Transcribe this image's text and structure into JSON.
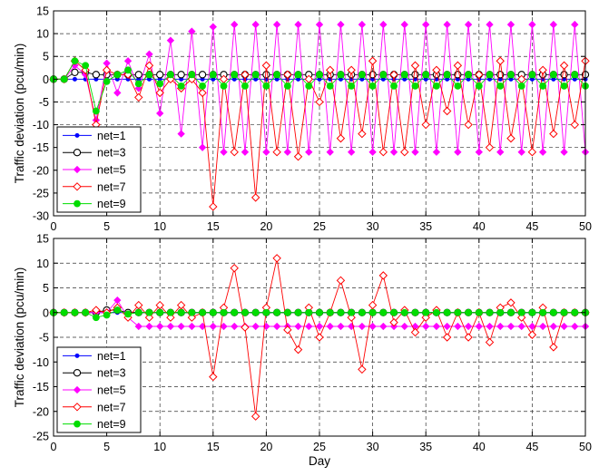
{
  "chart_data": [
    {
      "type": "line",
      "xlabel": "",
      "ylabel": "Traffic deviation (pcu/min)",
      "xlim": [
        0,
        50
      ],
      "ylim": [
        -30,
        15
      ],
      "xticks": [
        0,
        5,
        10,
        15,
        20,
        25,
        30,
        35,
        40,
        45,
        50
      ],
      "yticks": [
        15,
        10,
        5,
        0,
        -5,
        -10,
        -15,
        -20,
        -25,
        -30
      ],
      "grid": true,
      "legend_position": "bottom-left",
      "x": [
        0,
        1,
        2,
        3,
        4,
        5,
        6,
        7,
        8,
        9,
        10,
        11,
        12,
        13,
        14,
        15,
        16,
        17,
        18,
        19,
        20,
        21,
        22,
        23,
        24,
        25,
        26,
        27,
        28,
        29,
        30,
        31,
        32,
        33,
        34,
        35,
        36,
        37,
        38,
        39,
        40,
        41,
        42,
        43,
        44,
        45,
        46,
        47,
        48,
        49,
        50
      ],
      "series": [
        {
          "name": "net=1",
          "color": "#0000ff",
          "marker": "dot",
          "values": [
            0,
            0,
            0,
            0,
            0,
            0,
            0,
            0,
            0,
            0,
            0,
            0,
            0,
            0,
            0,
            0,
            0,
            0,
            0,
            0,
            0,
            0,
            0,
            0,
            0,
            0,
            0,
            0,
            0,
            0,
            0,
            0,
            0,
            0,
            0,
            0,
            0,
            0,
            0,
            0,
            0,
            0,
            0,
            0,
            0,
            0,
            0,
            0,
            0,
            0,
            0
          ]
        },
        {
          "name": "net=3",
          "color": "#000000",
          "marker": "circle",
          "values": [
            0,
            0,
            1.5,
            1.5,
            1,
            1,
            1,
            1,
            1,
            1,
            1,
            1,
            1,
            1,
            1,
            1,
            1,
            1,
            1,
            1,
            1,
            1,
            1,
            1,
            1,
            1,
            1,
            1,
            1,
            1,
            1,
            1,
            1,
            1,
            1,
            1,
            1,
            1,
            1,
            1,
            1,
            1,
            1,
            1,
            1,
            1,
            1,
            1,
            1,
            1,
            1
          ]
        },
        {
          "name": "net=5",
          "color": "#ff00ff",
          "marker": "star",
          "values": [
            0,
            0,
            3,
            1,
            -9,
            3.5,
            -3,
            4,
            -2,
            5.5,
            -7.5,
            8.5,
            -12,
            10.5,
            -15,
            11.5,
            -16,
            12,
            -16,
            12,
            -16,
            12,
            -16,
            12,
            -16,
            12,
            -16,
            12,
            -16,
            12,
            -16,
            12,
            -16,
            12,
            -16,
            12,
            -16,
            12,
            -16,
            12,
            -16,
            12,
            -16,
            12,
            -16,
            12,
            -16,
            12,
            -16,
            12,
            -16
          ]
        },
        {
          "name": "net=7",
          "color": "#ff0000",
          "marker": "diamond",
          "values": [
            0,
            0,
            4,
            2,
            -10,
            2,
            1,
            1,
            -4,
            3,
            -3,
            0,
            -2,
            0,
            -3,
            -28,
            0,
            -16,
            1,
            -26,
            3,
            -16,
            1,
            -17,
            0,
            -5,
            2,
            -13,
            2,
            -12,
            4,
            -16,
            1,
            -16,
            3,
            -10,
            2,
            -7,
            3,
            -10,
            1,
            -15,
            4,
            -13,
            0,
            -16,
            2,
            -12,
            3,
            -10,
            4
          ]
        },
        {
          "name": "net=9",
          "color": "#00dd00",
          "marker": "dot",
          "values": [
            0,
            0,
            4,
            3,
            -7,
            -0.5,
            1,
            2,
            -1,
            1,
            -1,
            1,
            -1.5,
            1,
            -1.5,
            1,
            -1.5,
            1,
            -1.5,
            1,
            -1.5,
            1,
            -1.5,
            1,
            -1.5,
            1,
            -1.5,
            1,
            -1.5,
            1,
            -1.5,
            1,
            -1.5,
            1,
            -1.5,
            1,
            -1.5,
            1,
            -1.5,
            1,
            -1.5,
            1,
            -1.5,
            1,
            -1.5,
            1,
            -1.5,
            1,
            -1.5,
            1,
            -1.5
          ]
        }
      ]
    },
    {
      "type": "line",
      "xlabel": "Day",
      "ylabel": "Traffic deviation (pcu/min)",
      "xlim": [
        0,
        50
      ],
      "ylim": [
        -25,
        15
      ],
      "xticks": [
        0,
        5,
        10,
        15,
        20,
        25,
        30,
        35,
        40,
        45,
        50
      ],
      "yticks": [
        15,
        10,
        5,
        0,
        -5,
        -10,
        -15,
        -20,
        -25
      ],
      "grid": true,
      "legend_position": "bottom-left",
      "x": [
        0,
        1,
        2,
        3,
        4,
        5,
        6,
        7,
        8,
        9,
        10,
        11,
        12,
        13,
        14,
        15,
        16,
        17,
        18,
        19,
        20,
        21,
        22,
        23,
        24,
        25,
        26,
        27,
        28,
        29,
        30,
        31,
        32,
        33,
        34,
        35,
        36,
        37,
        38,
        39,
        40,
        41,
        42,
        43,
        44,
        45,
        46,
        47,
        48,
        49,
        50
      ],
      "series": [
        {
          "name": "net=1",
          "color": "#0000ff",
          "marker": "dot",
          "values": [
            0,
            0,
            0,
            0,
            0,
            0,
            0,
            0,
            0,
            0,
            0,
            0,
            0,
            0,
            0,
            0,
            0,
            0,
            0,
            0,
            0,
            0,
            0,
            0,
            0,
            0,
            0,
            0,
            0,
            0,
            0,
            0,
            0,
            0,
            0,
            0,
            0,
            0,
            0,
            0,
            0,
            0,
            0,
            0,
            0,
            0,
            0,
            0,
            0,
            0,
            0
          ]
        },
        {
          "name": "net=3",
          "color": "#000000",
          "marker": "circle",
          "values": [
            0,
            0,
            0,
            0,
            0,
            0.5,
            0.5,
            0,
            0,
            0,
            0,
            0,
            0,
            0,
            0,
            0,
            0,
            0,
            0,
            0,
            0,
            0,
            0,
            0,
            0,
            0,
            0,
            0,
            0,
            0,
            0,
            0,
            0,
            0,
            0,
            0,
            0,
            0,
            0,
            0,
            0,
            0,
            0,
            0,
            0,
            0,
            0,
            0,
            0,
            0,
            0
          ]
        },
        {
          "name": "net=5",
          "color": "#ff00ff",
          "marker": "star",
          "values": [
            0,
            0,
            0,
            0,
            0,
            0,
            2.5,
            -1,
            -2.8,
            -2.8,
            -2.8,
            -2.8,
            -2.8,
            -2.8,
            -2.8,
            -2.8,
            -2.8,
            -2.8,
            -2.8,
            -2.8,
            -2.8,
            -2.8,
            -2.8,
            -2.8,
            -2.8,
            -2.8,
            -2.8,
            -2.8,
            -2.8,
            -2.8,
            -2.8,
            -2.8,
            -2.8,
            -2.8,
            -2.8,
            -2.8,
            -2.8,
            -2.8,
            -2.8,
            -2.8,
            -2.8,
            -2.8,
            -2.8,
            -2.8,
            -2.8,
            -2.8,
            -2.8,
            -2.8,
            -2.8,
            -2.8,
            -2.8
          ]
        },
        {
          "name": "net=7",
          "color": "#ff0000",
          "marker": "diamond",
          "values": [
            0,
            0,
            0,
            0,
            0.5,
            0,
            1,
            -1,
            1.5,
            -1,
            1.5,
            -1,
            1.5,
            -1,
            0,
            -13,
            1,
            9,
            -3,
            -21,
            1,
            11,
            -3.5,
            -7.5,
            1,
            -5,
            0,
            6.5,
            -1,
            -11.5,
            1.5,
            7.5,
            -2,
            0.5,
            -4,
            -1,
            0.5,
            -5,
            0,
            -5,
            0,
            -6,
            1,
            2,
            -1,
            -4.5,
            1,
            -7,
            0,
            0,
            0
          ]
        },
        {
          "name": "net=9",
          "color": "#00dd00",
          "marker": "dot",
          "values": [
            0,
            0,
            0,
            0,
            -1,
            -0.5,
            0.5,
            -0.3,
            0,
            0,
            0,
            0,
            0,
            0,
            0,
            0,
            0,
            0,
            0,
            0,
            0,
            0,
            0,
            0,
            0,
            0,
            0,
            0,
            0,
            0,
            0,
            0,
            0,
            0,
            0,
            0,
            0,
            0,
            0,
            0,
            0,
            0,
            0,
            0,
            0,
            0,
            0,
            0,
            0,
            0,
            0
          ]
        }
      ]
    }
  ]
}
